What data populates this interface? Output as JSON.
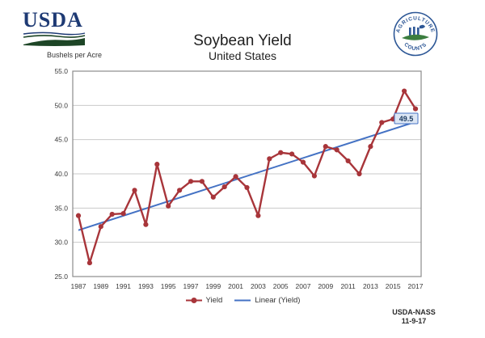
{
  "colors": {
    "usda_navy": "#1e3a74",
    "usda_green": "#1d4526",
    "nass_blue": "#2d5796",
    "nass_green": "#3b7d3f",
    "series_red": "#a8353a",
    "trend_blue": "#4472c4",
    "grid": "#c9c9c9",
    "frame": "#8c8c8c",
    "label_fill": "#dce6f4",
    "label_border": "#4472c4",
    "label_text": "#17375e",
    "text": "#333333"
  },
  "header": {
    "usda_logo_text": "USDA",
    "nass_logo_top_text": "AGRICULTURE",
    "nass_logo_bottom_text": "COUNTS",
    "title": "Soybean Yield",
    "subtitle": "United States"
  },
  "chart_data": {
    "type": "line",
    "title": "Soybean Yield",
    "subtitle": "United States",
    "ylabel": "Bushels per Acre",
    "xlabel": "",
    "ylim": [
      25,
      55
    ],
    "ytick_step": 5,
    "grid": true,
    "legend_position": "bottom",
    "x": [
      1987,
      1988,
      1989,
      1990,
      1991,
      1992,
      1993,
      1994,
      1995,
      1996,
      1997,
      1998,
      1999,
      2000,
      2001,
      2002,
      2003,
      2004,
      2005,
      2006,
      2007,
      2008,
      2009,
      2010,
      2011,
      2012,
      2013,
      2014,
      2015,
      2016,
      2017
    ],
    "x_label_every": 2,
    "series": [
      {
        "name": "Yield",
        "type": "line-markers",
        "color": "#a8353a",
        "values": [
          33.9,
          27.0,
          32.3,
          34.1,
          34.2,
          37.6,
          32.6,
          41.4,
          35.3,
          37.6,
          38.9,
          38.9,
          36.6,
          38.1,
          39.6,
          38.0,
          33.9,
          42.2,
          43.1,
          42.9,
          41.7,
          39.7,
          44.0,
          43.5,
          41.9,
          40.0,
          44.0,
          47.5,
          48.0,
          52.1,
          49.5
        ]
      },
      {
        "name": "Linear (Yield)",
        "type": "linear-trend",
        "color": "#4472c4"
      }
    ],
    "end_label": {
      "text": "49.5",
      "fill": "#dce6f4",
      "border": "#4472c4"
    }
  },
  "legend": {
    "yield_label": "Yield",
    "linear_label": "Linear (Yield)"
  },
  "footer": {
    "line1": "USDA-NASS",
    "line2": "11-9-17"
  }
}
